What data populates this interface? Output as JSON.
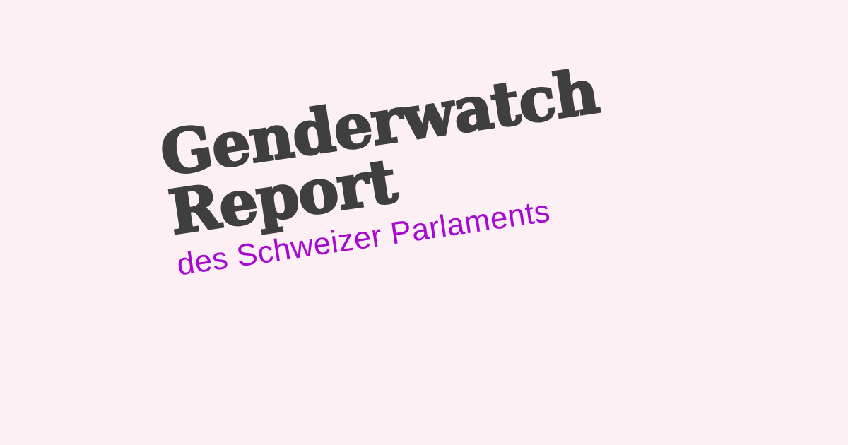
{
  "hero": {
    "title_line_1": "Genderwatch",
    "title_line_2": "Report",
    "subtitle": "des Schweizer Parlaments"
  },
  "colors": {
    "background": "#fcf0f5",
    "title": "#3f3f3f",
    "subtitle": "#a60ad0"
  }
}
